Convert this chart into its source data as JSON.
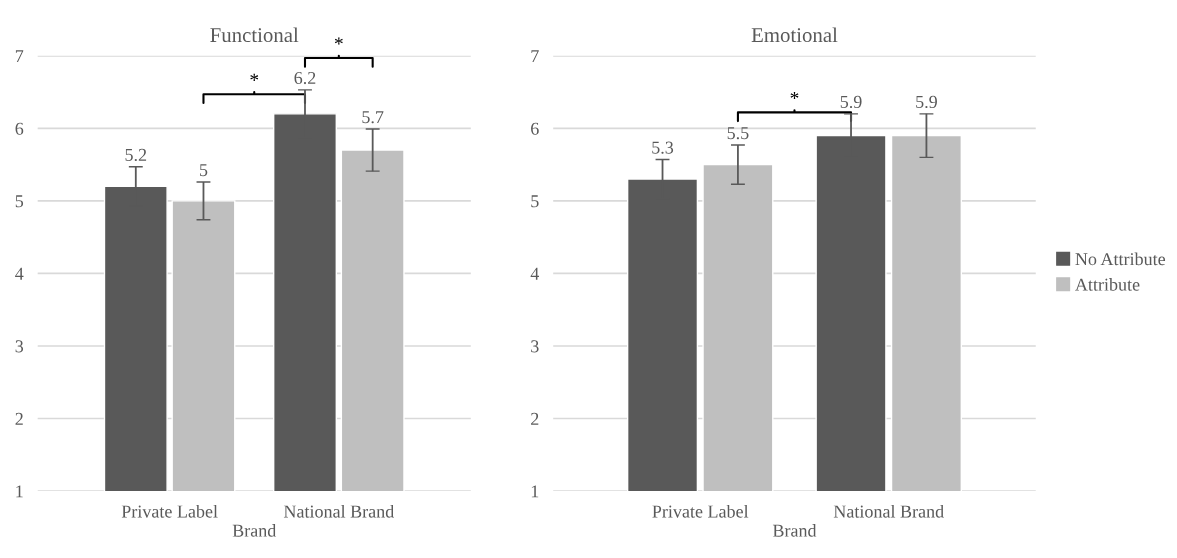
{
  "chart_data": [
    {
      "type": "bar",
      "title": "Functional",
      "xlabel": "Brand",
      "categories": [
        "Private Label",
        "National Brand"
      ],
      "series": [
        {
          "color": "#595959",
          "values": [
            5.2,
            6.2
          ],
          "errors": [
            0.27,
            0.33
          ]
        },
        {
          "color": "#bfbfbf",
          "values": [
            5,
            5.7
          ],
          "errors": [
            0.26,
            0.29
          ]
        }
      ],
      "ylim": [
        1,
        7
      ],
      "yticks": [
        1,
        2,
        3,
        4,
        5,
        6,
        7
      ],
      "grid": "y",
      "data_labels": true,
      "legend": false,
      "annotations": [
        "*",
        "*"
      ]
    },
    {
      "type": "bar",
      "title": "Emotional",
      "xlabel": "Brand",
      "categories": [
        "Private Label",
        "National Brand"
      ],
      "series": [
        {
          "name": "No Attribute",
          "color": "#595959",
          "values": [
            5.3,
            5.9
          ],
          "errors": [
            0.27,
            0.3
          ]
        },
        {
          "name": "Attribute",
          "color": "#bfbfbf",
          "values": [
            5.5,
            5.9
          ],
          "errors": [
            0.27,
            0.3
          ]
        }
      ],
      "ylim": [
        1,
        7
      ],
      "yticks": [
        1,
        2,
        3,
        4,
        5,
        6,
        7
      ],
      "grid": "y",
      "data_labels": true,
      "legend": "right",
      "annotations": [
        "*"
      ]
    }
  ]
}
